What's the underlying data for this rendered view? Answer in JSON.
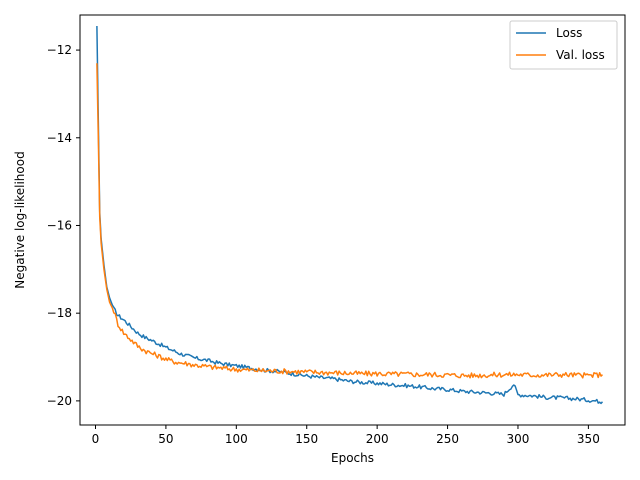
{
  "chart_data": {
    "type": "line",
    "title": "",
    "xlabel": "Epochs",
    "ylabel": "Negative log-likelihood",
    "xlim": [
      -11,
      376
    ],
    "ylim": [
      -20.55,
      -11.2
    ],
    "xticks": [
      0,
      50,
      100,
      150,
      200,
      250,
      300,
      350
    ],
    "yticks": [
      -20,
      -18,
      -16,
      -14,
      -12
    ],
    "ytick_labels": [
      "−20",
      "−18",
      "−16",
      "−14",
      "−12"
    ],
    "grid": false,
    "legend_position": "top-right",
    "series": [
      {
        "name": "Loss",
        "color": "#1f77b4",
        "points": [
          [
            1,
            -11.45
          ],
          [
            2,
            -13.6
          ],
          [
            3,
            -15.7
          ],
          [
            4,
            -16.3
          ],
          [
            6,
            -16.9
          ],
          [
            8,
            -17.4
          ],
          [
            10,
            -17.65
          ],
          [
            13,
            -17.9
          ],
          [
            16,
            -18.05
          ],
          [
            20,
            -18.15
          ],
          [
            25,
            -18.3
          ],
          [
            30,
            -18.45
          ],
          [
            35,
            -18.55
          ],
          [
            40,
            -18.62
          ],
          [
            45,
            -18.7
          ],
          [
            50,
            -18.78
          ],
          [
            55,
            -18.85
          ],
          [
            60,
            -18.92
          ],
          [
            65,
            -18.97
          ],
          [
            70,
            -19.02
          ],
          [
            75,
            -19.05
          ],
          [
            80,
            -19.08
          ],
          [
            85,
            -19.12
          ],
          [
            90,
            -19.15
          ],
          [
            95,
            -19.18
          ],
          [
            100,
            -19.2
          ],
          [
            110,
            -19.25
          ],
          [
            120,
            -19.3
          ],
          [
            130,
            -19.33
          ],
          [
            140,
            -19.38
          ],
          [
            150,
            -19.43
          ],
          [
            160,
            -19.47
          ],
          [
            170,
            -19.5
          ],
          [
            180,
            -19.55
          ],
          [
            190,
            -19.58
          ],
          [
            200,
            -19.6
          ],
          [
            210,
            -19.63
          ],
          [
            220,
            -19.65
          ],
          [
            230,
            -19.68
          ],
          [
            240,
            -19.72
          ],
          [
            250,
            -19.74
          ],
          [
            260,
            -19.78
          ],
          [
            270,
            -19.8
          ],
          [
            280,
            -19.82
          ],
          [
            290,
            -19.85
          ],
          [
            297,
            -19.62
          ],
          [
            300,
            -19.86
          ],
          [
            310,
            -19.88
          ],
          [
            320,
            -19.92
          ],
          [
            330,
            -19.93
          ],
          [
            340,
            -19.95
          ],
          [
            350,
            -19.98
          ],
          [
            360,
            -20.02
          ]
        ]
      },
      {
        "name": "Val. loss",
        "color": "#ff7f0e",
        "points": [
          [
            1,
            -12.3
          ],
          [
            2,
            -14.0
          ],
          [
            3,
            -15.8
          ],
          [
            4,
            -16.4
          ],
          [
            6,
            -17.0
          ],
          [
            8,
            -17.45
          ],
          [
            10,
            -17.75
          ],
          [
            13,
            -17.95
          ],
          [
            16,
            -18.25
          ],
          [
            20,
            -18.45
          ],
          [
            25,
            -18.6
          ],
          [
            30,
            -18.75
          ],
          [
            35,
            -18.85
          ],
          [
            40,
            -18.92
          ],
          [
            45,
            -18.98
          ],
          [
            50,
            -19.05
          ],
          [
            55,
            -19.1
          ],
          [
            60,
            -19.13
          ],
          [
            65,
            -19.15
          ],
          [
            70,
            -19.18
          ],
          [
            75,
            -19.2
          ],
          [
            80,
            -19.22
          ],
          [
            85,
            -19.24
          ],
          [
            90,
            -19.25
          ],
          [
            95,
            -19.27
          ],
          [
            100,
            -19.28
          ],
          [
            110,
            -19.3
          ],
          [
            120,
            -19.31
          ],
          [
            130,
            -19.32
          ],
          [
            140,
            -19.33
          ],
          [
            150,
            -19.34
          ],
          [
            160,
            -19.35
          ],
          [
            170,
            -19.36
          ],
          [
            180,
            -19.37
          ],
          [
            190,
            -19.38
          ],
          [
            200,
            -19.38
          ],
          [
            210,
            -19.39
          ],
          [
            220,
            -19.39
          ],
          [
            230,
            -19.4
          ],
          [
            240,
            -19.4
          ],
          [
            250,
            -19.41
          ],
          [
            260,
            -19.42
          ],
          [
            270,
            -19.42
          ],
          [
            280,
            -19.41
          ],
          [
            290,
            -19.4
          ],
          [
            300,
            -19.4
          ],
          [
            310,
            -19.41
          ],
          [
            320,
            -19.41
          ],
          [
            330,
            -19.4
          ],
          [
            340,
            -19.41
          ],
          [
            350,
            -19.42
          ],
          [
            360,
            -19.4
          ]
        ]
      }
    ]
  }
}
